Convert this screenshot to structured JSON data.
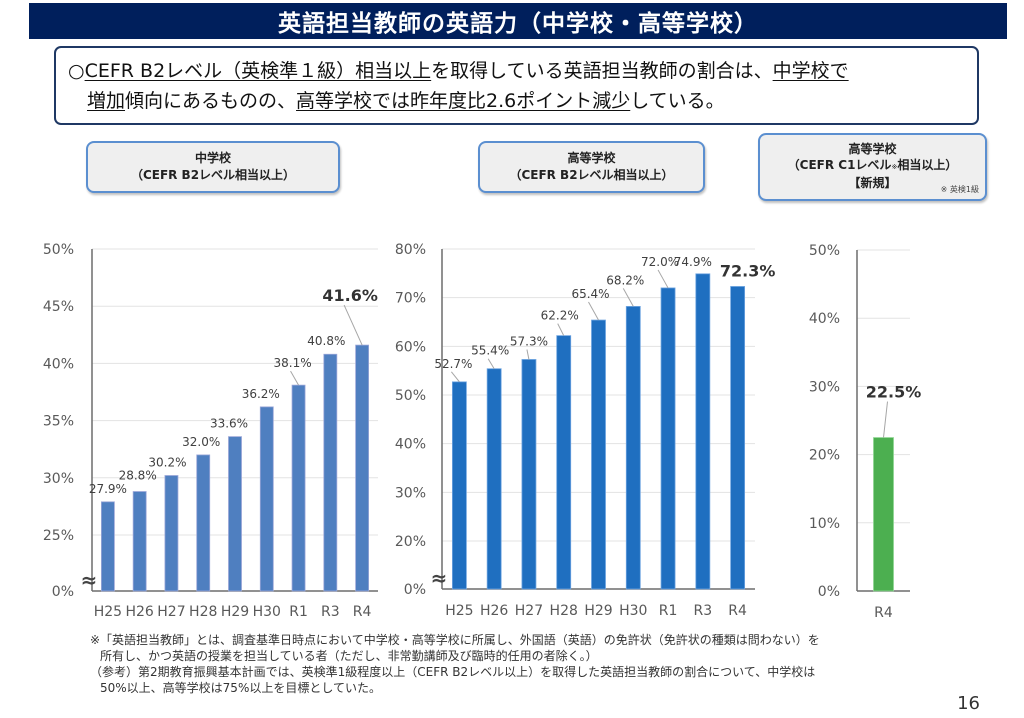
{
  "title": "英語担当教師の英語力（中学校・高等学校）",
  "summary": {
    "bullet": "○",
    "segments_line1": [
      {
        "text": "CEFR B2レベル（英検準１級）相当以上",
        "underline": true
      },
      {
        "text": "を取得している英語担当教師の割合は、",
        "underline": false
      },
      {
        "text": "中学校で",
        "underline": true
      }
    ],
    "segments_line2": [
      {
        "text": "増加",
        "underline": true
      },
      {
        "text": "傾向にあるものの、",
        "underline": false
      },
      {
        "text": "高等学校では昨年度比2.6ポイント減少",
        "underline": true
      },
      {
        "text": "している。",
        "underline": false
      }
    ]
  },
  "labels": {
    "jhs": {
      "line1": "中学校",
      "line2": "（CEFR B2レベル相当以上）"
    },
    "hs": {
      "line1": "高等学校",
      "line2": "（CEFR B2レベル相当以上）"
    },
    "hs_c1": {
      "line1": "高等学校",
      "line2_a": "（CEFR C1レベル",
      "line2_mark": "※",
      "line2_b": "相当以上）",
      "line3": "【新規】",
      "note": "※ 英検1級"
    }
  },
  "chart_data": [
    {
      "type": "bar",
      "title": "中学校（CEFR B2レベル相当以上）",
      "categories": [
        "H25",
        "H26",
        "H27",
        "H28",
        "H29",
        "H30",
        "R1",
        "R3",
        "R4"
      ],
      "values": [
        27.9,
        28.8,
        30.2,
        32.0,
        33.6,
        36.2,
        38.1,
        40.8,
        41.6
      ],
      "data_labels": [
        "27.9%",
        "28.8%",
        "30.2%",
        "32.0%",
        "33.6%",
        "36.2%",
        "38.1%",
        "40.8%",
        "41.6%"
      ],
      "highlight_last": true,
      "yticks": [
        "0%",
        "25%",
        "30%",
        "35%",
        "40%",
        "45%",
        "50%"
      ],
      "ytick_values": [
        0,
        25,
        30,
        35,
        40,
        45,
        50
      ],
      "axis_break": "≈",
      "ylim": [
        0,
        50
      ],
      "broken_axis_range": [
        25,
        50
      ],
      "xlabel": "",
      "ylabel": "",
      "color": "#4f7fc0",
      "grid": true
    },
    {
      "type": "bar",
      "title": "高等学校（CEFR B2レベル相当以上）",
      "categories": [
        "H25",
        "H26",
        "H27",
        "H28",
        "H29",
        "H30",
        "R1",
        "R3",
        "R4"
      ],
      "values": [
        52.7,
        55.4,
        57.3,
        62.2,
        65.4,
        68.2,
        72.0,
        74.9,
        72.3
      ],
      "data_labels": [
        "52.7%",
        "55.4%",
        "57.3%",
        "62.2%",
        "65.4%",
        "68.2%",
        "72.0%",
        "74.9%",
        "72.3%"
      ],
      "highlight_last": true,
      "yticks": [
        "0%",
        "20%",
        "30%",
        "40%",
        "50%",
        "60%",
        "70%",
        "80%"
      ],
      "ytick_values": [
        0,
        20,
        30,
        40,
        50,
        60,
        70,
        80
      ],
      "axis_break": "≈",
      "ylim": [
        0,
        80
      ],
      "broken_axis_range": [
        20,
        80
      ],
      "xlabel": "",
      "ylabel": "",
      "color": "#1f6fc0",
      "grid": true
    },
    {
      "type": "bar",
      "title": "高等学校（CEFR C1レベル相当以上）【新規】",
      "categories": [
        "R4"
      ],
      "values": [
        22.5
      ],
      "data_labels": [
        "22.5%"
      ],
      "highlight_last": true,
      "yticks": [
        "0%",
        "10%",
        "20%",
        "30%",
        "40%",
        "50%"
      ],
      "ytick_values": [
        0,
        10,
        20,
        30,
        40,
        50
      ],
      "ylim": [
        0,
        50
      ],
      "xlabel": "",
      "ylabel": "",
      "color": "#4caf50",
      "grid": true
    }
  ],
  "footnotes": [
    "※「英語担当教師」とは、調査基準日時点において中学校・高等学校に所属し、外国語（英語）の免許状（免許状の種類は問わない）を",
    "所有し、かつ英語の授業を担当している者（ただし、非常勤講師及び臨時的任用の者除く。）",
    "（参考）第2期教育振興基本計画では、英検準1級程度以上（CEFR B2レベル以上）を取得した英語担当教師の割合について、中学校は",
    "50%以上、高等学校は75%以上を目標としていた。"
  ],
  "page_number": "16"
}
